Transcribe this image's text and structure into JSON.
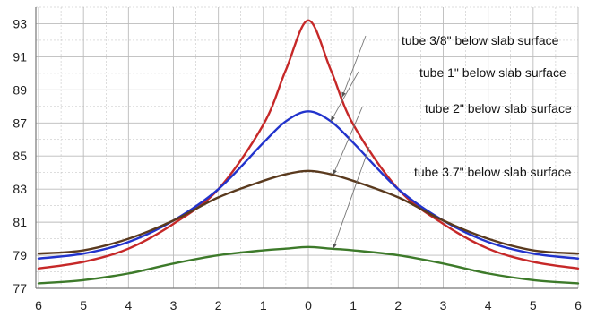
{
  "chart_data": {
    "type": "line",
    "title": "",
    "xlabel": "",
    "ylabel": "",
    "x": [
      -6,
      -5,
      -4,
      -3,
      -2,
      -1,
      -0.5,
      0,
      0.5,
      1,
      2,
      3,
      4,
      5,
      6
    ],
    "x_tick_labels": [
      "6",
      "5",
      "4",
      "3",
      "2",
      "1",
      "0",
      "1",
      "2",
      "3",
      "4",
      "5",
      "6"
    ],
    "y_ticks": [
      77,
      79,
      81,
      83,
      85,
      87,
      89,
      91,
      93
    ],
    "xlim": [
      -6,
      6
    ],
    "ylim": [
      77,
      94
    ],
    "grid": true,
    "colors": {
      "grid": "#bbbbbb",
      "axis": "#777777"
    },
    "series": [
      {
        "name": "tube 3/8\" below slab surface",
        "color": "#c62828",
        "values": [
          78.2,
          78.6,
          79.4,
          80.9,
          83.0,
          86.9,
          90.2,
          93.2,
          90.2,
          86.9,
          83.0,
          80.9,
          79.4,
          78.6,
          78.2
        ]
      },
      {
        "name": "tube 1\" below slab surface",
        "color": "#2233cc",
        "values": [
          78.8,
          79.1,
          79.8,
          81.1,
          83.0,
          85.8,
          87.1,
          87.7,
          87.1,
          85.8,
          83.0,
          81.1,
          79.8,
          79.1,
          78.8
        ]
      },
      {
        "name": "tube 2\" below slab surface",
        "color": "#5a3a1e",
        "values": [
          79.1,
          79.3,
          80.0,
          81.1,
          82.5,
          83.5,
          83.9,
          84.1,
          83.9,
          83.5,
          82.5,
          81.1,
          80.0,
          79.3,
          79.1
        ]
      },
      {
        "name": "tube 3.7\" below slab surface",
        "color": "#3d7a2a",
        "values": [
          77.3,
          77.5,
          77.9,
          78.5,
          79.0,
          79.3,
          79.4,
          79.5,
          79.4,
          79.3,
          79.0,
          78.5,
          77.9,
          77.5,
          77.3
        ]
      }
    ],
    "annotations": [
      {
        "text": "tube 3/8\" below slab surface",
        "series": 0
      },
      {
        "text": "tube 1\" below slab surface",
        "series": 1
      },
      {
        "text": "tube 2\" below slab surface",
        "series": 2
      },
      {
        "text": "tube 3.7\" below slab surface",
        "series": 3
      }
    ]
  }
}
